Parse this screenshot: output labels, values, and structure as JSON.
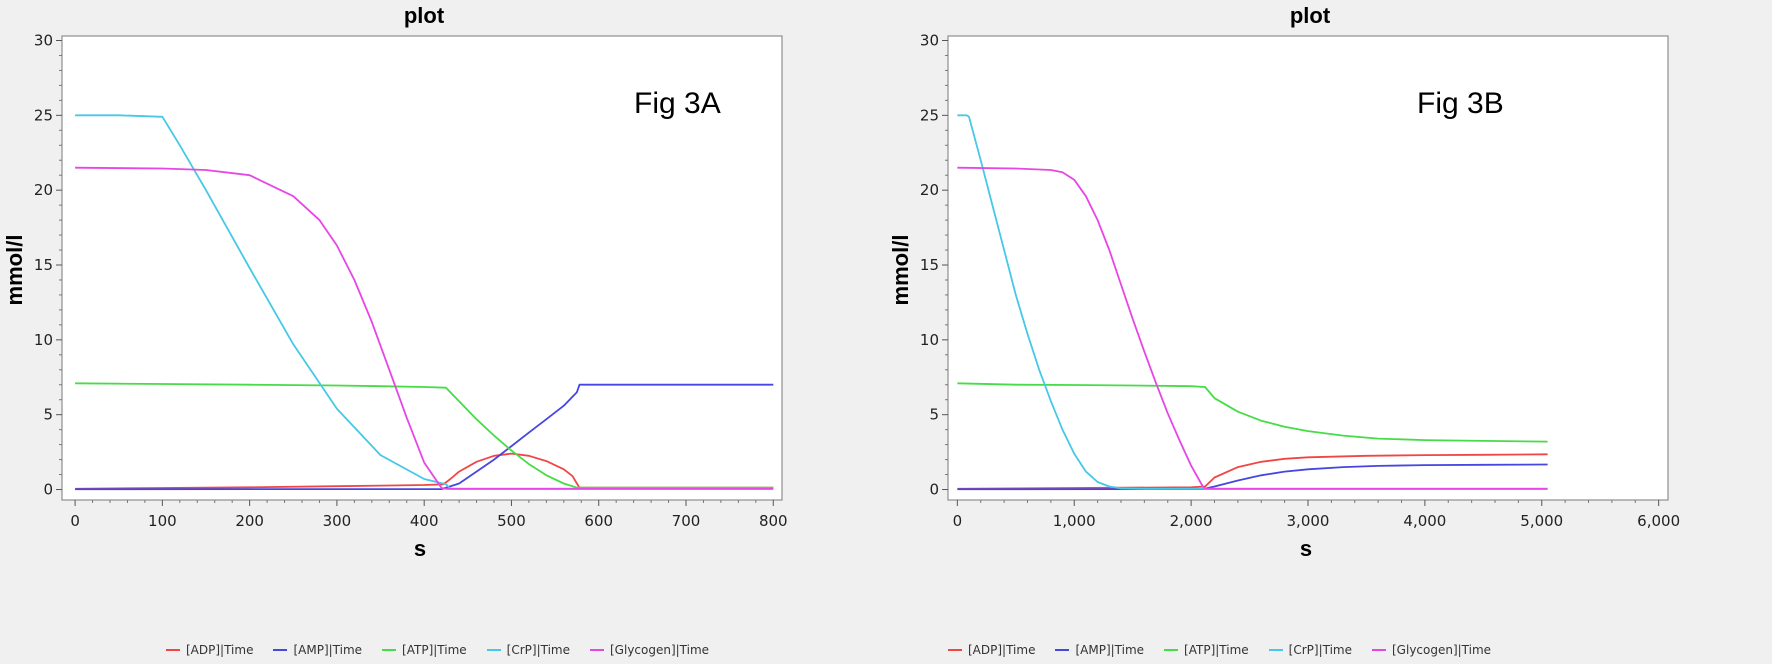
{
  "chart_data": [
    {
      "id": "A",
      "type": "line",
      "title": "plot",
      "annotation": "Fig 3A",
      "xlabel": "s",
      "ylabel": "mmol/l",
      "xlim": [
        -15,
        810
      ],
      "ylim": [
        -0.7,
        30.3
      ],
      "xticks": [
        0,
        100,
        200,
        300,
        400,
        500,
        600,
        700,
        800
      ],
      "xtick_labels": [
        "0",
        "100",
        "200",
        "300",
        "400",
        "500",
        "600",
        "700",
        "800"
      ],
      "yticks": [
        0,
        5,
        10,
        15,
        20,
        25,
        30
      ],
      "ytick_labels": [
        "0",
        "5",
        "10",
        "15",
        "20",
        "25",
        "30"
      ],
      "series": [
        {
          "name": "[ADP]|Time",
          "color": "#f04646",
          "x": [
            0,
            100,
            200,
            300,
            350,
            400,
            422,
            430,
            440,
            460,
            480,
            500,
            520,
            540,
            560,
            570,
            575,
            578,
            600,
            700,
            800
          ],
          "y": [
            0.05,
            0.1,
            0.15,
            0.22,
            0.26,
            0.3,
            0.35,
            0.7,
            1.2,
            1.85,
            2.25,
            2.4,
            2.25,
            1.9,
            1.35,
            0.9,
            0.4,
            0.12,
            0.12,
            0.12,
            0.12
          ]
        },
        {
          "name": "[AMP]|Time",
          "color": "#4646e0",
          "x": [
            0,
            420,
            440,
            460,
            480,
            500,
            520,
            540,
            560,
            570,
            575,
            578,
            600,
            700,
            800
          ],
          "y": [
            0.02,
            0.03,
            0.4,
            1.2,
            2.0,
            2.9,
            3.8,
            4.7,
            5.6,
            6.2,
            6.5,
            7.0,
            7.0,
            7.0,
            7.0
          ]
        },
        {
          "name": "[ATP]|Time",
          "color": "#46dc46",
          "x": [
            0,
            100,
            200,
            300,
            350,
            400,
            425,
            440,
            460,
            480,
            500,
            520,
            540,
            560,
            575,
            600,
            700,
            800
          ],
          "y": [
            7.1,
            7.05,
            7.0,
            6.95,
            6.9,
            6.85,
            6.8,
            5.9,
            4.7,
            3.6,
            2.6,
            1.7,
            0.95,
            0.4,
            0.12,
            0.12,
            0.12,
            0.12
          ]
        },
        {
          "name": "[CrP]|Time",
          "color": "#46c8e6",
          "x": [
            0,
            50,
            100,
            120,
            150,
            200,
            250,
            300,
            350,
            400,
            425,
            430,
            500,
            600,
            700,
            800
          ],
          "y": [
            25.0,
            25.0,
            24.9,
            23.0,
            20.0,
            14.8,
            9.7,
            5.4,
            2.3,
            0.7,
            0.35,
            0.05,
            0.05,
            0.05,
            0.05,
            0.05
          ]
        },
        {
          "name": "[Glycogen]|Time",
          "color": "#e646e6",
          "x": [
            0,
            100,
            150,
            200,
            250,
            280,
            300,
            320,
            340,
            360,
            380,
            400,
            420,
            425,
            500,
            600,
            700,
            800
          ],
          "y": [
            21.5,
            21.45,
            21.35,
            21.0,
            19.6,
            18.0,
            16.3,
            14.0,
            11.2,
            8.0,
            4.8,
            1.8,
            0.1,
            0.05,
            0.05,
            0.05,
            0.05,
            0.05
          ]
        }
      ]
    },
    {
      "id": "B",
      "type": "line",
      "title": "plot",
      "annotation": "Fig 3B",
      "xlabel": "s",
      "ylabel": "mmol/l",
      "xlim": [
        -80,
        6080
      ],
      "ylim": [
        -0.7,
        30.3
      ],
      "xticks": [
        0,
        1000,
        2000,
        3000,
        4000,
        5000,
        6000
      ],
      "xtick_labels": [
        "0",
        "1,000",
        "2,000",
        "3,000",
        "4,000",
        "5,000",
        "6,000"
      ],
      "yticks": [
        0,
        5,
        10,
        15,
        20,
        25,
        30
      ],
      "ytick_labels": [
        "0",
        "5",
        "10",
        "15",
        "20",
        "25",
        "30"
      ],
      "series": [
        {
          "name": "[ADP]|Time",
          "color": "#f04646",
          "x": [
            0,
            1000,
            2000,
            2120,
            2200,
            2400,
            2600,
            2800,
            3000,
            3500,
            4000,
            4500,
            5050
          ],
          "y": [
            0.05,
            0.1,
            0.15,
            0.2,
            0.8,
            1.5,
            1.85,
            2.05,
            2.15,
            2.25,
            2.3,
            2.32,
            2.35
          ]
        },
        {
          "name": "[AMP]|Time",
          "color": "#4646e0",
          "x": [
            0,
            2100,
            2200,
            2400,
            2600,
            2800,
            3000,
            3300,
            3600,
            4000,
            4500,
            5050
          ],
          "y": [
            0.02,
            0.03,
            0.2,
            0.6,
            0.95,
            1.2,
            1.35,
            1.5,
            1.58,
            1.63,
            1.65,
            1.67
          ]
        },
        {
          "name": "[ATP]|Time",
          "color": "#46dc46",
          "x": [
            0,
            500,
            1000,
            1500,
            2000,
            2120,
            2200,
            2400,
            2600,
            2800,
            3000,
            3300,
            3600,
            4000,
            4500,
            5050
          ],
          "y": [
            7.1,
            7.0,
            6.98,
            6.95,
            6.9,
            6.85,
            6.1,
            5.2,
            4.6,
            4.2,
            3.9,
            3.6,
            3.4,
            3.3,
            3.25,
            3.2
          ],
          "_": ""
        },
        {
          "name": "[CrP]|Time",
          "color": "#46c8e6",
          "x": [
            0,
            80,
            100,
            200,
            300,
            400,
            500,
            600,
            700,
            800,
            900,
            1000,
            1100,
            1200,
            1300,
            1400,
            1600,
            2000,
            3000,
            4000,
            5050
          ],
          "y": [
            25.0,
            25.0,
            24.9,
            22.0,
            19.0,
            16.0,
            13.0,
            10.4,
            8.0,
            5.9,
            4.0,
            2.4,
            1.2,
            0.5,
            0.2,
            0.08,
            0.05,
            0.05,
            0.05,
            0.05,
            0.05
          ]
        },
        {
          "name": "[Glycogen]|Time",
          "color": "#e646e6",
          "x": [
            0,
            500,
            800,
            900,
            1000,
            1100,
            1200,
            1300,
            1400,
            1500,
            1600,
            1700,
            1800,
            1900,
            2000,
            2100,
            2120,
            3000,
            4000,
            5050
          ],
          "y": [
            21.5,
            21.45,
            21.35,
            21.2,
            20.7,
            19.6,
            18.0,
            16.0,
            13.7,
            11.4,
            9.2,
            7.1,
            5.1,
            3.3,
            1.6,
            0.2,
            0.05,
            0.05,
            0.05,
            0.05
          ]
        }
      ]
    }
  ]
}
